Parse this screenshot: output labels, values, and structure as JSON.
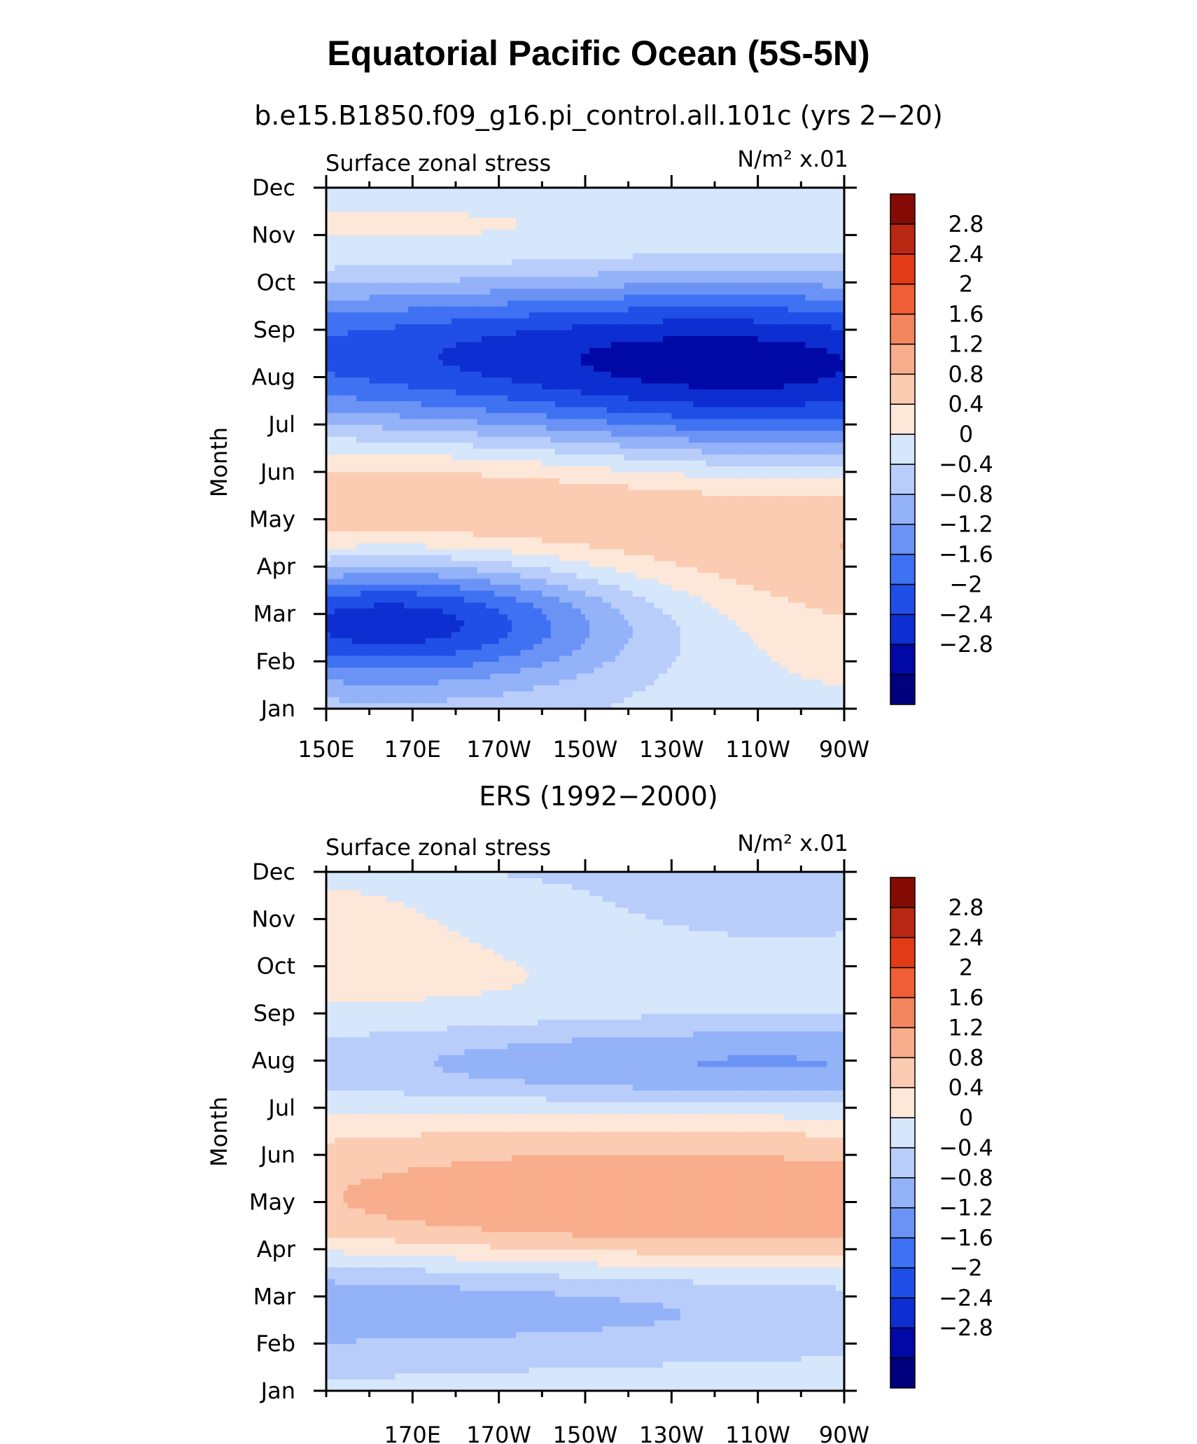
{
  "title": "Equatorial Pacific Ocean (5S-5N)",
  "colors": {
    "levels": [
      "#00007f",
      "#0009a6",
      "#0d2ed0",
      "#1f4fe6",
      "#3f72f2",
      "#6a93f5",
      "#93b2f8",
      "#b8cdfa",
      "#d6e6fb",
      "#fde7d9",
      "#fbcbb2",
      "#f8ad8c",
      "#f4865f",
      "#ef5e35",
      "#e23c17",
      "#b82812",
      "#840b05"
    ],
    "background": "#ffffff"
  },
  "chart_data": [
    {
      "type": "heatmap",
      "subtitle": "b.e15.B1850.f09_g16.pi_control.all.101c (yrs 2−20)",
      "left_label": "Surface zonal stress",
      "right_label": "N/m² x.01",
      "ylabel": "Month",
      "xlim": [
        150,
        270
      ],
      "x_ticks": [
        150,
        170,
        190,
        210,
        230,
        250,
        270
      ],
      "x_tick_labels": [
        "150E",
        "170E",
        "170W",
        "150W",
        "130W",
        "110W",
        "90W"
      ],
      "y_tick_labels": [
        "Jan",
        "Feb",
        "Mar",
        "Apr",
        "May",
        "Jun",
        "Jul",
        "Aug",
        "Sep",
        "Oct",
        "Nov",
        "Dec"
      ],
      "colorbar_labels": [
        "2.8",
        "2.4",
        "2",
        "1.6",
        "1.2",
        "0.8",
        "0.4",
        "0",
        "−0.4",
        "−0.8",
        "−1.2",
        "−1.6",
        "−2",
        "−2.4",
        "−2.8"
      ],
      "levels": [
        -2.8,
        -2.4,
        -2,
        -1.6,
        -1.2,
        -0.8,
        -0.4,
        0,
        0.4,
        0.8,
        1.2,
        1.6,
        2,
        2.4,
        2.8
      ],
      "features": [
        {
          "lon": 163,
          "month": 1.9,
          "value": -2.2,
          "sx": 40,
          "sy": 0.9
        },
        {
          "lon": 174,
          "month": 2.3,
          "value": -1.4,
          "sx": 48,
          "sy": 1.6
        },
        {
          "lon": 195,
          "month": 3.8,
          "value": 1.25,
          "sx": 120,
          "sy": 2.1
        },
        {
          "lon": 208,
          "month": 3.1,
          "value": 0.6,
          "sx": 100,
          "sy": 2.2
        },
        {
          "lon": 205,
          "month": 4.7,
          "value": 0.9,
          "sx": 110,
          "sy": 1.2
        },
        {
          "lon": 222,
          "month": 7.0,
          "value": -2.2,
          "sx": 120,
          "sy": 1.7
        },
        {
          "lon": 252,
          "month": 6.3,
          "value": -0.9,
          "sx": 40,
          "sy": 2.2
        },
        {
          "lon": 180,
          "month": 7.9,
          "value": -0.5,
          "sx": 70,
          "sy": 1.0
        },
        {
          "lon": 210,
          "month": 9.6,
          "value": 1.0,
          "sx": 130,
          "sy": 1.1
        },
        {
          "lon": 215,
          "month": 11.7,
          "value": -0.5,
          "sx": 70,
          "sy": 0.5
        }
      ]
    },
    {
      "type": "heatmap",
      "subtitle": "ERS (1992−2000)",
      "left_label": "Surface zonal stress",
      "right_label": "N/m² x.01",
      "ylabel": "Month",
      "xlim": [
        150,
        270
      ],
      "x_ticks": [
        170,
        190,
        210,
        230,
        250,
        270
      ],
      "x_tick_labels": [
        "170E",
        "170W",
        "150W",
        "130W",
        "110W",
        "90W"
      ],
      "y_tick_labels": [
        "Jan",
        "Feb",
        "Mar",
        "Apr",
        "May",
        "Jun",
        "Jul",
        "Aug",
        "Sep",
        "Oct",
        "Nov",
        "Dec"
      ],
      "colorbar_labels": [
        "2.8",
        "2.4",
        "2",
        "1.6",
        "1.2",
        "0.8",
        "0.4",
        "0",
        "−0.4",
        "−0.8",
        "−1.2",
        "−1.6",
        "−2",
        "−2.4",
        "−2.8"
      ],
      "levels": [
        -2.8,
        -2.4,
        -2,
        -1.6,
        -1.2,
        -0.8,
        -0.4,
        0,
        0.4,
        0.8,
        1.2,
        1.6,
        2,
        2.4,
        2.8
      ],
      "features": [
        {
          "lon": 190,
          "month": 2.0,
          "value": -1.7,
          "sx": 110,
          "sy": 0.9
        },
        {
          "lon": 228,
          "month": 3.4,
          "value": 1.8,
          "sx": 100,
          "sy": 1.7
        },
        {
          "lon": 175,
          "month": 9.4,
          "value": 0.6,
          "sx": 110,
          "sy": 2.4
        },
        {
          "lon": 240,
          "month": 6.9,
          "value": -1.3,
          "sx": 80,
          "sy": 0.7
        },
        {
          "lon": 242,
          "month": 10.5,
          "value": -0.6,
          "sx": 45,
          "sy": 1.3
        },
        {
          "lon": 210,
          "month": 11.9,
          "value": -1.2,
          "sx": 60,
          "sy": 0.5
        }
      ]
    }
  ]
}
